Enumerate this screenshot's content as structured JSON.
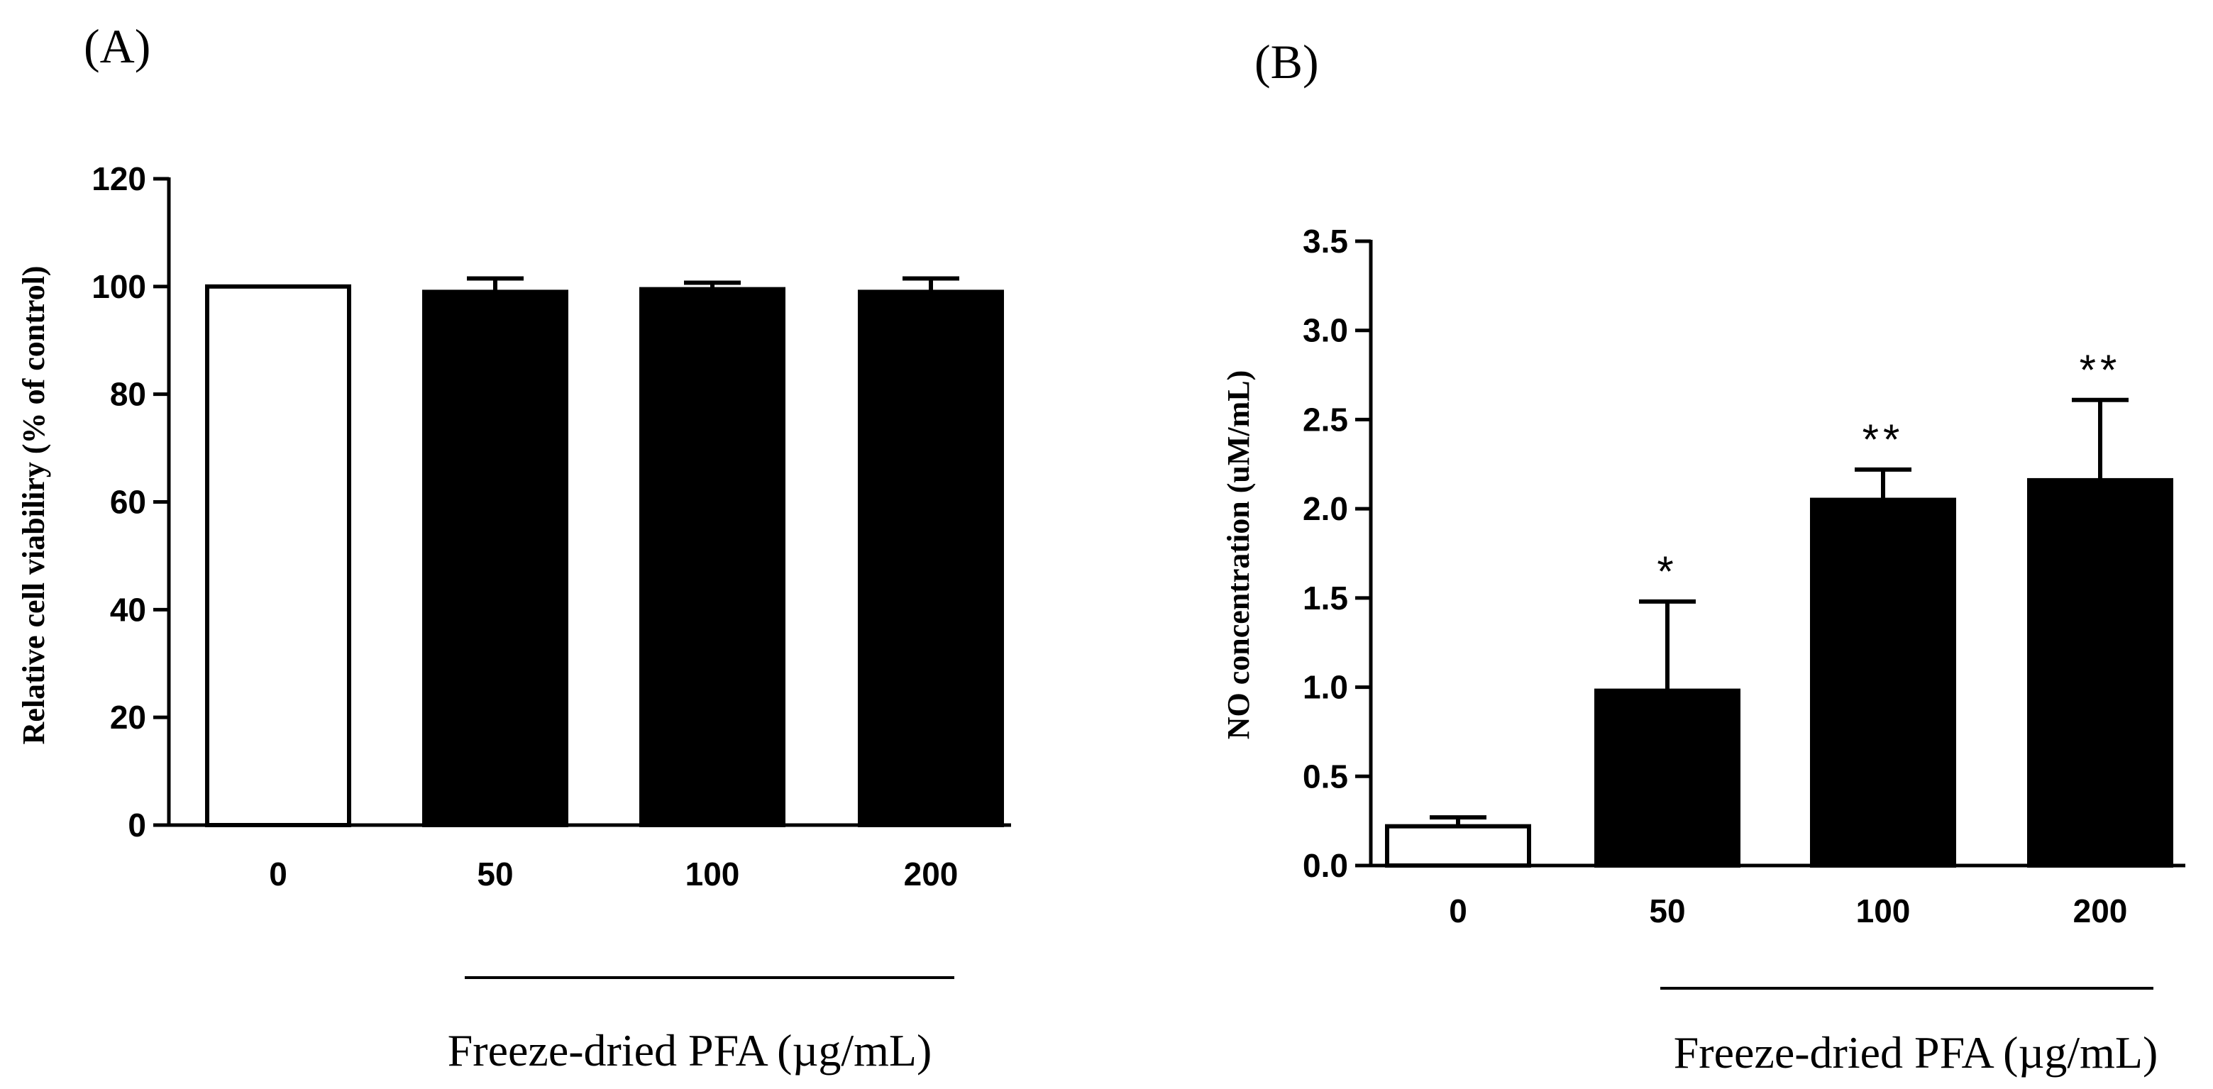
{
  "chart_data": [
    {
      "panel": "(A)",
      "type": "bar",
      "categories": [
        "0",
        "50",
        "100",
        "200"
      ],
      "values": [
        100,
        99,
        99.5,
        99
      ],
      "errors": [
        0,
        2.5,
        1.2,
        2.5
      ],
      "fills": [
        "#ffffff",
        "#000000",
        "#000000",
        "#000000"
      ],
      "annotations": [
        "",
        "",
        "",
        ""
      ],
      "ylabel": "Relative cell viabiliry (% of control)",
      "xlabel": "Freeze-dried PFA (µg/mL)",
      "ylim": [
        0,
        120
      ],
      "yticks": [
        "0",
        "20",
        "40",
        "60",
        "80",
        "100",
        "120"
      ],
      "grid": false
    },
    {
      "panel": "(B)",
      "type": "bar",
      "categories": [
        "0",
        "50",
        "100",
        "200"
      ],
      "values": [
        0.22,
        0.98,
        2.05,
        2.16
      ],
      "errors": [
        0.05,
        0.5,
        0.17,
        0.45
      ],
      "fills": [
        "#ffffff",
        "#000000",
        "#000000",
        "#000000"
      ],
      "annotations": [
        "",
        "*",
        "**",
        "**"
      ],
      "ylabel": "NO concentration (uM/mL)",
      "xlabel": "Freeze-dried PFA (µg/mL)",
      "ylim": [
        0,
        3.5
      ],
      "yticks": [
        "0.0",
        "0.5",
        "1.0",
        "1.5",
        "2.0",
        "2.5",
        "3.0",
        "3.5"
      ],
      "grid": false
    }
  ]
}
